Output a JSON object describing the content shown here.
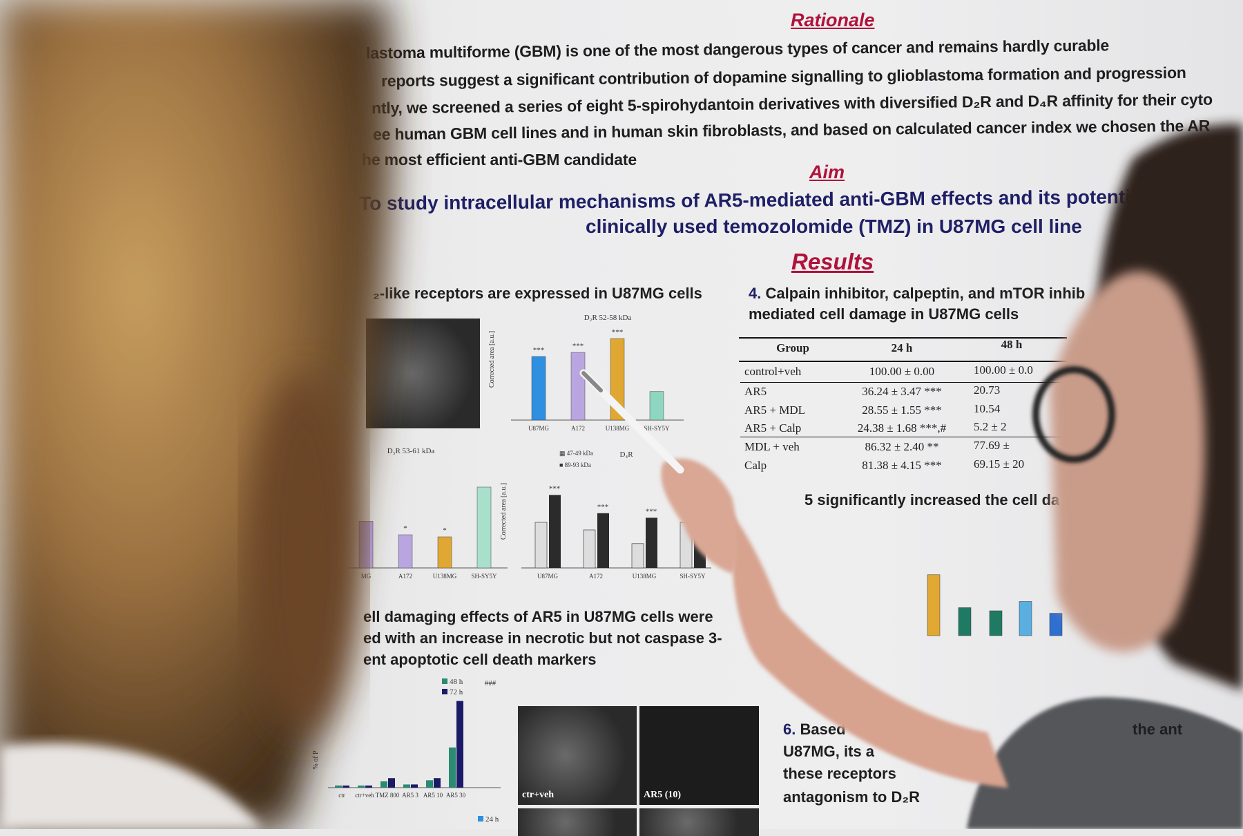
{
  "poster": {
    "rationale_heading": "Rationale",
    "rationale_lines": [
      "lastoma multiforme (GBM) is one of the most dangerous types of cancer and remains hardly curable",
      "reports suggest a significant contribution of dopamine signalling to glioblastoma formation and progression",
      "ntly, we screened a series of eight 5-spirohydantoin derivatives with diversified D₂R and D₄R affinity for their cyto",
      "ee human GBM cell lines and in human skin fibroblasts, and based on calculated cancer index we chosen the AR",
      "he most efficient anti-GBM candidate"
    ],
    "aim_heading": "Aim",
    "aim_lines": [
      "To study intracellular mechanisms of AR5-mediated anti-GBM effects and its potential",
      "clinically used temozolomide (TMZ) in U87MG cell line"
    ],
    "results_heading": "Results",
    "section1_title": "₂-like receptors are expressed  in U87MG cells",
    "section4_num": "4.",
    "section4_title_1": "Calpain inhibitor, calpeptin, and mTOR inhib",
    "section4_title_2": "mediated cell damage in U87MG cells",
    "table": {
      "headers": [
        "Group",
        "24 h",
        "48 h"
      ],
      "rows": [
        [
          "control+veh",
          "100.00 ± 0.00",
          "100.00 ± 0.0"
        ],
        [
          "AR5",
          "36.24 ± 3.47 ***",
          "20.73"
        ],
        [
          "AR5 + MDL",
          "28.55 ± 1.55 ***",
          "10.54"
        ],
        [
          "AR5 + Calp",
          "24.38 ± 1.68 ***,#",
          "5.2 ± 2"
        ],
        [
          "MDL + veh",
          "86.32 ± 2.40 **",
          "77.69 ±"
        ],
        [
          "Calp",
          "81.38 ± 4.15 ***",
          "69.15 ± 20"
        ]
      ]
    },
    "section5_title": "5 significantly increased the cell da",
    "section3_lines": [
      "ell damaging effects of AR5 in U87MG cells were",
      "ed with an increase in necrotic but not caspase 3-",
      "ent  apoptotic cell death markers"
    ],
    "section6_num": "6.",
    "section6_lines": [
      "Based",
      "U87MG, its a",
      "these receptors",
      "antagonism to D₂R"
    ],
    "section6_right": "the ant",
    "micro_labels": [
      "ctr+veh",
      "AR5 (10)"
    ],
    "charts": {
      "d2r": {
        "title": "D₂R 52-58 kDa",
        "ylabel": "Corrected area [a.u.]",
        "categories": [
          "U87MG",
          "A172",
          "U138MG",
          "SH-SY5Y"
        ],
        "values": [
          78,
          83,
          100,
          35
        ],
        "marks": [
          "***",
          "***",
          "***",
          ""
        ],
        "colors": [
          "#2f8fe0",
          "#b9a6e0",
          "#e0a833",
          "#8fd6c0"
        ]
      },
      "d3r": {
        "title": "D₃R 53-61 kDa",
        "categories": [
          "MG",
          "A172",
          "U138MG",
          "SH-SY5Y"
        ],
        "values": [
          45,
          32,
          30,
          78
        ],
        "marks": [
          "",
          "*",
          "*",
          ""
        ],
        "colors": [
          "#b9a6e0",
          "#b9a6e0",
          "#e0a833",
          "#a8e0cc"
        ]
      },
      "d4r": {
        "title": "D₄R",
        "ylabel": "Corrected area [a.u.]",
        "legend": [
          "47-49 kDa",
          "89-93 kDa"
        ],
        "categories": [
          "U87MG",
          "A172",
          "U138MG",
          "SH-SY5Y"
        ],
        "values_a": [
          30,
          25,
          16,
          30
        ],
        "values_b": [
          48,
          36,
          33,
          40
        ],
        "marks": [
          "***",
          "***",
          "***",
          ""
        ]
      },
      "time": {
        "legend": [
          "48 h",
          "72 h"
        ],
        "ylabel": "% of P",
        "categories": [
          "ctr",
          "ctr+veh",
          "TMZ 800",
          "AR5 3",
          "AR5 10",
          "AR5 30"
        ],
        "values_a": [
          2,
          2,
          6,
          3,
          7,
          38
        ],
        "values_b": [
          2,
          2,
          9,
          3,
          9,
          82
        ],
        "top_mark": "###",
        "legend2": "24 h"
      }
    },
    "colors": {
      "heading_red": "#b0123a",
      "aim_navy": "#1f1f66"
    }
  }
}
